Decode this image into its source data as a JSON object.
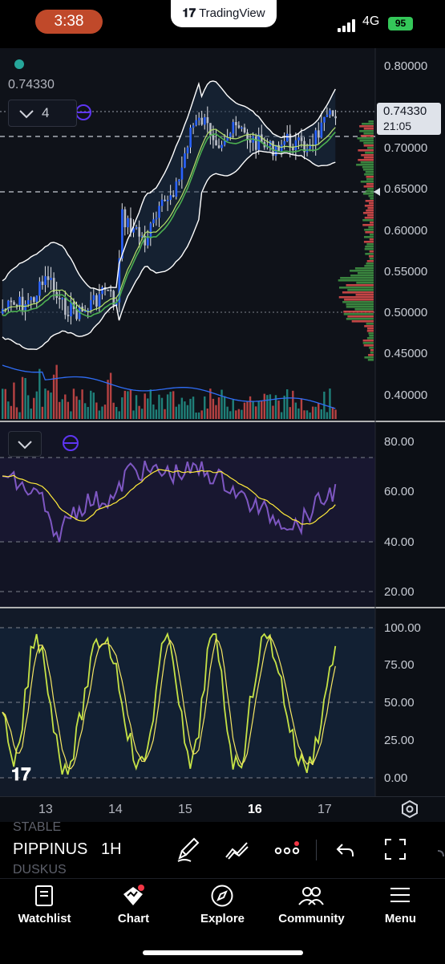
{
  "status_bar": {
    "time": "3:38",
    "app_name": "TradingView",
    "network": "4G",
    "battery": "95"
  },
  "chart": {
    "current_price": "0.74330",
    "indicator_count": "4",
    "price_tag": {
      "value": "0.74330",
      "countdown": "21:05"
    },
    "price_axis": [
      "0.80000",
      "0.75000",
      "0.70000",
      "0.65000",
      "0.60000",
      "0.55000",
      "0.50000",
      "0.45000",
      "0.40000"
    ],
    "rsi_axis": [
      "80.00",
      "60.00",
      "40.00",
      "20.00"
    ],
    "stoch_axis": [
      "100.00",
      "75.00",
      "50.00",
      "25.00",
      "0.00"
    ],
    "time_axis": [
      "13",
      "14",
      "15",
      "16",
      "17"
    ],
    "colors": {
      "bull": "#2962ff",
      "bear": "#ef5350",
      "band": "#ffffff",
      "ma_green": "#4caf50",
      "rsi": "#7e57c2",
      "rsi_ma": "#ffeb3b",
      "stoch": "#c6e346"
    }
  },
  "toolbar": {
    "symbol": "PIPPINUS",
    "symbol_above": "STABLE",
    "symbol_below": "DUSKUS",
    "interval": "1H"
  },
  "nav": {
    "watchlist": "Watchlist",
    "chart": "Chart",
    "explore": "Explore",
    "community": "Community",
    "menu": "Menu"
  }
}
